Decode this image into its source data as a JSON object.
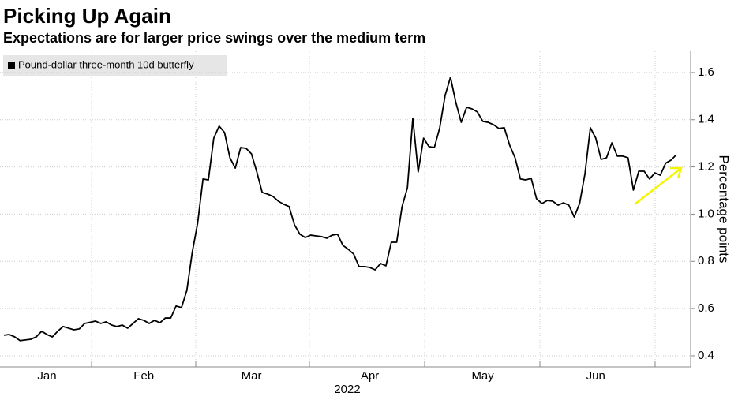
{
  "chart_data": {
    "type": "line",
    "title": "Picking Up Again",
    "subtitle": "Expectations are for larger price swings over the medium term",
    "ylabel": "Percentage points",
    "xlabel": "2022",
    "categories": [
      null,
      null,
      null,
      null,
      null,
      null,
      null,
      null,
      "Jan",
      null,
      null,
      null,
      null,
      null,
      null,
      null,
      null,
      null,
      null,
      null,
      null,
      null,
      null,
      null,
      null,
      null,
      "Feb",
      null,
      null,
      null,
      null,
      null,
      null,
      null,
      null,
      null,
      null,
      null,
      null,
      null,
      null,
      null,
      null,
      null,
      null,
      null,
      "Mar",
      null,
      null,
      null,
      null,
      null,
      null,
      null,
      null,
      null,
      null,
      null,
      null,
      null,
      null,
      null,
      null,
      null,
      null,
      null,
      null,
      null,
      "Apr",
      null,
      null,
      null,
      null,
      null,
      null,
      null,
      null,
      null,
      null,
      null,
      null,
      null,
      null,
      null,
      null,
      null,
      null,
      null,
      null,
      "May",
      null,
      null,
      null,
      null,
      null,
      null,
      null,
      null,
      null,
      null,
      null,
      null,
      null,
      null,
      null,
      null,
      null,
      null,
      null,
      null,
      "Jun",
      null,
      null,
      null,
      null,
      null,
      null,
      null,
      null,
      null,
      null,
      null,
      null,
      null,
      null,
      null
    ],
    "series": [
      {
        "name": "Pound-dollar three-month 10d butterfly",
        "color": "#000000",
        "values": [
          0.487,
          0.49,
          0.48,
          0.464,
          0.467,
          0.47,
          0.48,
          0.504,
          0.49,
          0.48,
          0.504,
          0.524,
          0.517,
          0.51,
          0.514,
          0.537,
          0.542,
          0.547,
          0.537,
          0.544,
          0.53,
          0.524,
          0.53,
          0.517,
          0.537,
          0.557,
          0.55,
          0.537,
          0.55,
          0.54,
          0.56,
          0.56,
          0.611,
          0.604,
          0.677,
          0.838,
          0.961,
          1.149,
          1.145,
          1.322,
          1.373,
          1.346,
          1.239,
          1.195,
          1.282,
          1.279,
          1.256,
          1.179,
          1.092,
          1.085,
          1.075,
          1.055,
          1.042,
          1.032,
          0.955,
          0.915,
          0.901,
          0.911,
          0.908,
          0.905,
          0.898,
          0.911,
          0.915,
          0.868,
          0.851,
          0.831,
          0.778,
          0.778,
          0.774,
          0.764,
          0.791,
          0.781,
          0.881,
          0.881,
          1.032,
          1.112,
          1.406,
          1.179,
          1.322,
          1.286,
          1.282,
          1.366,
          1.503,
          1.58,
          1.473,
          1.389,
          1.453,
          1.446,
          1.433,
          1.393,
          1.389,
          1.379,
          1.363,
          1.366,
          1.292,
          1.239,
          1.149,
          1.145,
          1.152,
          1.065,
          1.045,
          1.058,
          1.055,
          1.038,
          1.048,
          1.038,
          0.988,
          1.045,
          1.172,
          1.366,
          1.322,
          1.232,
          1.239,
          1.302,
          1.246,
          1.246,
          1.239,
          1.102,
          1.182,
          1.182,
          1.149,
          1.175,
          1.165,
          1.216,
          1.229,
          1.252
        ]
      }
    ],
    "ylim": [
      0.353,
      1.69
    ],
    "yticks": [
      0.4,
      0.6,
      0.8,
      {
        "value": 1,
        "label": "1.0"
      },
      1.2,
      1.4,
      1.6
    ],
    "grid": true
  }
}
